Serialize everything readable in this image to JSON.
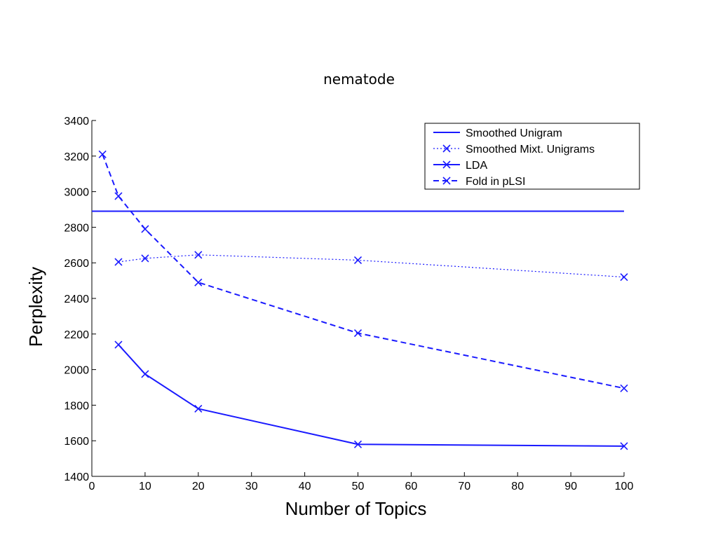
{
  "page": {
    "title": "nematode"
  },
  "chart_data": {
    "type": "line",
    "title": "nematode",
    "xlabel": "Number of Topics",
    "ylabel": "Perplexity",
    "xlim": [
      0,
      100
    ],
    "ylim": [
      1400,
      3400
    ],
    "xticks": [
      0,
      10,
      20,
      30,
      40,
      50,
      60,
      70,
      80,
      90,
      100
    ],
    "yticks": [
      1400,
      1600,
      1800,
      2000,
      2200,
      2400,
      2600,
      2800,
      3000,
      3200,
      3400
    ],
    "grid": false,
    "legend_position": "top-right",
    "series": [
      {
        "name": "Smoothed Unigram",
        "style": "solid",
        "marker": "none",
        "color": "#1a1aff",
        "x": [
          0,
          100
        ],
        "y": [
          2890,
          2890
        ]
      },
      {
        "name": "Smoothed Mixt. Unigrams",
        "style": "dotted",
        "marker": "x",
        "color": "#1a1aff",
        "x": [
          5,
          10,
          20,
          50,
          100
        ],
        "y": [
          2605,
          2625,
          2645,
          2615,
          2520
        ]
      },
      {
        "name": "LDA",
        "style": "solid",
        "marker": "x",
        "color": "#1a1aff",
        "x": [
          5,
          10,
          20,
          50,
          100
        ],
        "y": [
          2140,
          1975,
          1780,
          1580,
          1570
        ]
      },
      {
        "name": "Fold in pLSI",
        "style": "dashed",
        "marker": "x",
        "color": "#1a1aff",
        "x": [
          2,
          5,
          10,
          20,
          50,
          100
        ],
        "y": [
          3210,
          2975,
          2790,
          2490,
          2205,
          1895
        ]
      }
    ]
  }
}
